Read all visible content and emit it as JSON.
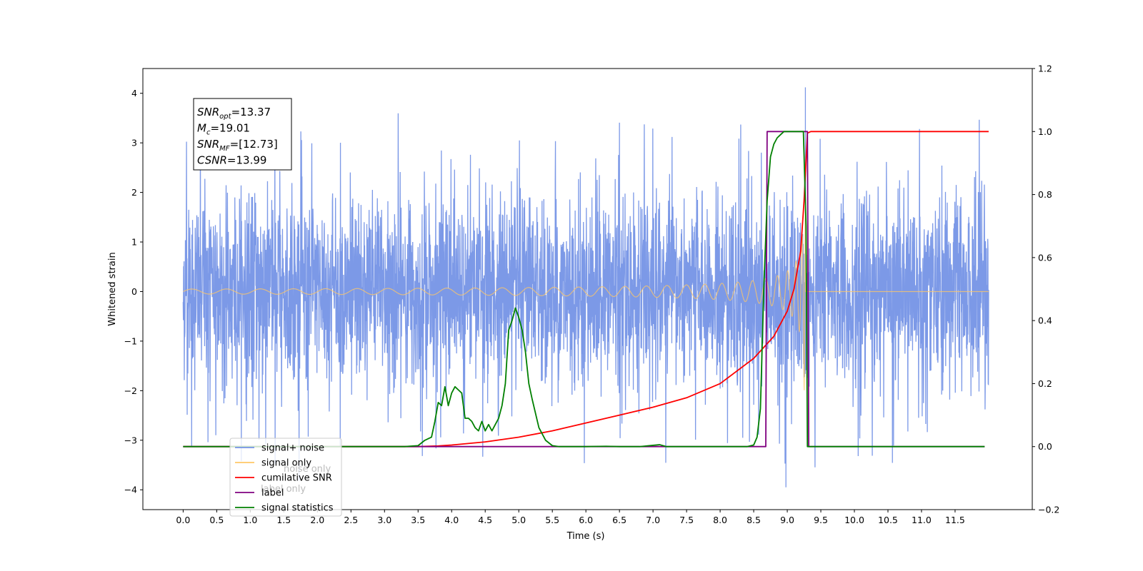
{
  "chart_data": {
    "type": "line",
    "xlabel": "Time (s)",
    "ylabel": "Whitened strain",
    "xlim": [
      -0.6,
      12.65
    ],
    "ylim": [
      -4.4,
      4.5
    ],
    "y2lim": [
      -0.2,
      1.2
    ],
    "x_ticks": [
      "0.0",
      "0.5",
      "1.0",
      "1.5",
      "2.0",
      "2.5",
      "3.0",
      "3.5",
      "4.0",
      "4.5",
      "5.0",
      "5.5",
      "6.0",
      "6.5",
      "7.0",
      "7.5",
      "8.0",
      "8.5",
      "9.0",
      "9.5",
      "10.0",
      "10.5",
      "11.0",
      "11.5"
    ],
    "y_ticks": [
      "4",
      "3",
      "2",
      "1",
      "0",
      "−1",
      "−2",
      "−3",
      "−4"
    ],
    "y2_ticks": [
      "1.2",
      "1.0",
      "0.8",
      "0.6",
      "0.4",
      "0.2",
      "0.0",
      "−0.2"
    ],
    "annotation": {
      "lines": [
        {
          "base": "SNR",
          "sub": "opt",
          "value": "=13.37"
        },
        {
          "base": "M",
          "sub": "c",
          "value": "=19.01"
        },
        {
          "base": "SNR",
          "sub": "MF",
          "value": "=[12.73]"
        },
        {
          "base": "CSNR",
          "sub": "",
          "value": "=13.99"
        }
      ]
    },
    "legend_position": "lower-left",
    "legend": [
      {
        "label": "signal+ noise",
        "color": "#7593e6"
      },
      {
        "label": "signal only",
        "color": "#ffc766"
      },
      {
        "label": "cumilative SNR",
        "color": "#ff0000"
      },
      {
        "label": "label",
        "color": "#800080"
      },
      {
        "label": "signal statistics",
        "color": "#008000"
      }
    ],
    "hidden_text": {
      "label_only": "label only",
      "noise_only": "noise only"
    },
    "series": [
      {
        "name": "signal+ noise",
        "axis": "left",
        "color": "#7593e6",
        "kind": "noise",
        "x_range": [
          0.0,
          12.0
        ],
        "typical_amplitude": 1.3,
        "extreme_range": [
          -3.95,
          4.12
        ]
      },
      {
        "name": "signal only",
        "axis": "left",
        "color": "#ffc766",
        "kind": "chirp",
        "x_range": [
          0.0,
          12.0
        ],
        "merger_time": 9.27,
        "peak_amplitude": 2.0
      },
      {
        "name": "cumilative SNR",
        "axis": "right",
        "color": "#ff0000",
        "x": [
          0.0,
          3.5,
          3.8,
          4.0,
          4.5,
          5.0,
          5.5,
          6.0,
          6.5,
          7.0,
          7.5,
          8.0,
          8.5,
          8.8,
          9.0,
          9.1,
          9.2,
          9.25,
          9.3,
          9.35,
          12.0
        ],
        "y": [
          0.0,
          0.0,
          0.002,
          0.005,
          0.015,
          0.03,
          0.05,
          0.075,
          0.1,
          0.125,
          0.155,
          0.2,
          0.28,
          0.35,
          0.43,
          0.5,
          0.62,
          0.78,
          0.995,
          1.0,
          1.0
        ]
      },
      {
        "name": "label",
        "axis": "right",
        "color": "#800080",
        "x": [
          0.0,
          8.68,
          8.7,
          9.3,
          9.32,
          11.94
        ],
        "y": [
          0.0,
          0.0,
          1.0,
          1.0,
          0.0,
          0.0
        ]
      },
      {
        "name": "signal statistics",
        "axis": "right",
        "color": "#008000",
        "x": [
          0.0,
          3.3,
          3.5,
          3.6,
          3.7,
          3.75,
          3.8,
          3.85,
          3.9,
          3.95,
          4.0,
          4.05,
          4.1,
          4.15,
          4.2,
          4.25,
          4.3,
          4.35,
          4.4,
          4.45,
          4.5,
          4.55,
          4.6,
          4.65,
          4.7,
          4.75,
          4.8,
          4.85,
          4.9,
          4.95,
          5.0,
          5.05,
          5.1,
          5.15,
          5.2,
          5.3,
          5.4,
          5.5,
          5.6,
          6.0,
          6.3,
          6.5,
          6.8,
          7.0,
          7.1,
          7.2,
          7.4,
          8.0,
          8.4,
          8.5,
          8.55,
          8.6,
          8.65,
          8.7,
          8.75,
          8.8,
          8.85,
          8.9,
          8.95,
          9.0,
          9.05,
          9.1,
          9.2,
          9.24,
          9.28,
          9.3,
          9.35,
          11.94
        ],
        "y": [
          0.0,
          0.0,
          0.003,
          0.02,
          0.03,
          0.08,
          0.14,
          0.13,
          0.19,
          0.13,
          0.17,
          0.19,
          0.18,
          0.17,
          0.09,
          0.09,
          0.08,
          0.06,
          0.05,
          0.08,
          0.05,
          0.07,
          0.05,
          0.07,
          0.09,
          0.13,
          0.2,
          0.37,
          0.4,
          0.44,
          0.41,
          0.37,
          0.3,
          0.2,
          0.15,
          0.06,
          0.02,
          0.003,
          0.0,
          0.0,
          0.001,
          0.0,
          0.0,
          0.004,
          0.006,
          0.0,
          0.0,
          0.0,
          0.0,
          0.005,
          0.03,
          0.12,
          0.5,
          0.78,
          0.92,
          0.96,
          0.98,
          0.99,
          1.0,
          1.0,
          1.0,
          1.0,
          1.0,
          1.0,
          0.7,
          0.0,
          0.0,
          0.0
        ]
      }
    ]
  }
}
